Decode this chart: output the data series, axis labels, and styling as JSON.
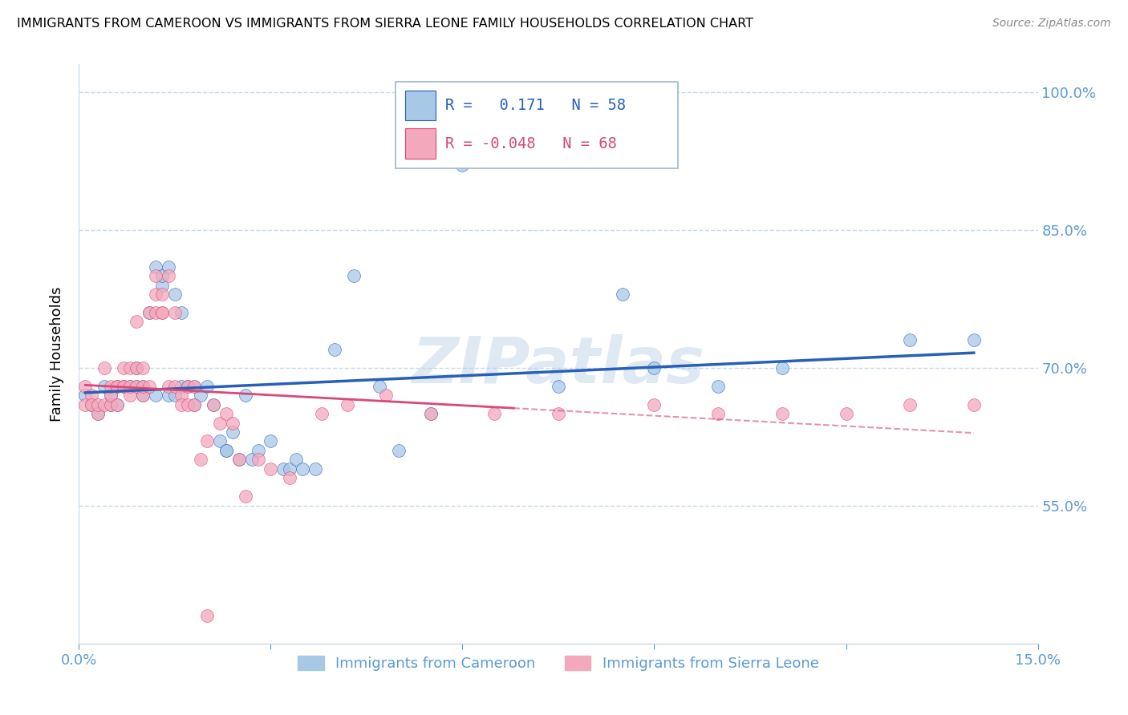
{
  "title": "IMMIGRANTS FROM CAMEROON VS IMMIGRANTS FROM SIERRA LEONE FAMILY HOUSEHOLDS CORRELATION CHART",
  "source": "Source: ZipAtlas.com",
  "ylabel": "Family Households",
  "xlim": [
    0.0,
    0.15
  ],
  "ylim": [
    0.4,
    1.03
  ],
  "xticks": [
    0.0,
    0.03,
    0.06,
    0.09,
    0.12,
    0.15
  ],
  "xticklabels": [
    "0.0%",
    "",
    "",
    "",
    "",
    "15.0%"
  ],
  "yticks": [
    0.55,
    0.7,
    0.85,
    1.0
  ],
  "yticklabels": [
    "55.0%",
    "70.0%",
    "85.0%",
    "100.0%"
  ],
  "legend_R_blue": "0.171",
  "legend_N_blue": "58",
  "legend_R_pink": "-0.048",
  "legend_N_pink": "68",
  "legend_label_blue": "Immigrants from Cameroon",
  "legend_label_pink": "Immigrants from Sierra Leone",
  "blue_color": "#a8c8e8",
  "pink_color": "#f4a8bb",
  "blue_line_color": "#2860b8",
  "pink_line_color": "#d84878",
  "axis_color": "#5b9bd5",
  "background_color": "#ffffff",
  "grid_color": "#c8d8e8",
  "blue_scatter_x": [
    0.001,
    0.002,
    0.003,
    0.004,
    0.005,
    0.005,
    0.006,
    0.006,
    0.007,
    0.008,
    0.009,
    0.009,
    0.01,
    0.01,
    0.011,
    0.012,
    0.012,
    0.013,
    0.013,
    0.014,
    0.014,
    0.015,
    0.015,
    0.016,
    0.016,
    0.017,
    0.018,
    0.018,
    0.019,
    0.02,
    0.021,
    0.022,
    0.023,
    0.023,
    0.024,
    0.025,
    0.026,
    0.027,
    0.028,
    0.03,
    0.032,
    0.033,
    0.034,
    0.035,
    0.037,
    0.04,
    0.043,
    0.047,
    0.05,
    0.055,
    0.06,
    0.075,
    0.085,
    0.09,
    0.1,
    0.11,
    0.13,
    0.14
  ],
  "blue_scatter_y": [
    0.67,
    0.66,
    0.65,
    0.68,
    0.66,
    0.67,
    0.68,
    0.66,
    0.68,
    0.68,
    0.68,
    0.7,
    0.67,
    0.68,
    0.76,
    0.81,
    0.67,
    0.79,
    0.8,
    0.67,
    0.81,
    0.78,
    0.67,
    0.76,
    0.68,
    0.68,
    0.66,
    0.68,
    0.67,
    0.68,
    0.66,
    0.62,
    0.61,
    0.61,
    0.63,
    0.6,
    0.67,
    0.6,
    0.61,
    0.62,
    0.59,
    0.59,
    0.6,
    0.59,
    0.59,
    0.72,
    0.8,
    0.68,
    0.61,
    0.65,
    0.92,
    0.68,
    0.78,
    0.7,
    0.68,
    0.7,
    0.73,
    0.73
  ],
  "pink_scatter_x": [
    0.001,
    0.001,
    0.002,
    0.002,
    0.003,
    0.003,
    0.004,
    0.004,
    0.005,
    0.005,
    0.005,
    0.006,
    0.006,
    0.006,
    0.007,
    0.007,
    0.007,
    0.008,
    0.008,
    0.008,
    0.009,
    0.009,
    0.009,
    0.01,
    0.01,
    0.01,
    0.011,
    0.011,
    0.012,
    0.012,
    0.012,
    0.013,
    0.013,
    0.013,
    0.014,
    0.014,
    0.015,
    0.015,
    0.016,
    0.016,
    0.017,
    0.017,
    0.018,
    0.018,
    0.019,
    0.02,
    0.021,
    0.022,
    0.023,
    0.024,
    0.025,
    0.026,
    0.028,
    0.03,
    0.033,
    0.038,
    0.042,
    0.048,
    0.055,
    0.065,
    0.075,
    0.09,
    0.1,
    0.11,
    0.12,
    0.13,
    0.14,
    0.02
  ],
  "pink_scatter_y": [
    0.68,
    0.66,
    0.67,
    0.66,
    0.65,
    0.66,
    0.66,
    0.7,
    0.66,
    0.67,
    0.68,
    0.68,
    0.66,
    0.68,
    0.68,
    0.68,
    0.7,
    0.67,
    0.68,
    0.7,
    0.68,
    0.7,
    0.75,
    0.67,
    0.68,
    0.7,
    0.68,
    0.76,
    0.78,
    0.76,
    0.8,
    0.76,
    0.76,
    0.78,
    0.68,
    0.8,
    0.68,
    0.76,
    0.67,
    0.66,
    0.66,
    0.68,
    0.66,
    0.68,
    0.6,
    0.62,
    0.66,
    0.64,
    0.65,
    0.64,
    0.6,
    0.56,
    0.6,
    0.59,
    0.58,
    0.65,
    0.66,
    0.67,
    0.65,
    0.65,
    0.65,
    0.66,
    0.65,
    0.65,
    0.65,
    0.66,
    0.66,
    0.43
  ]
}
